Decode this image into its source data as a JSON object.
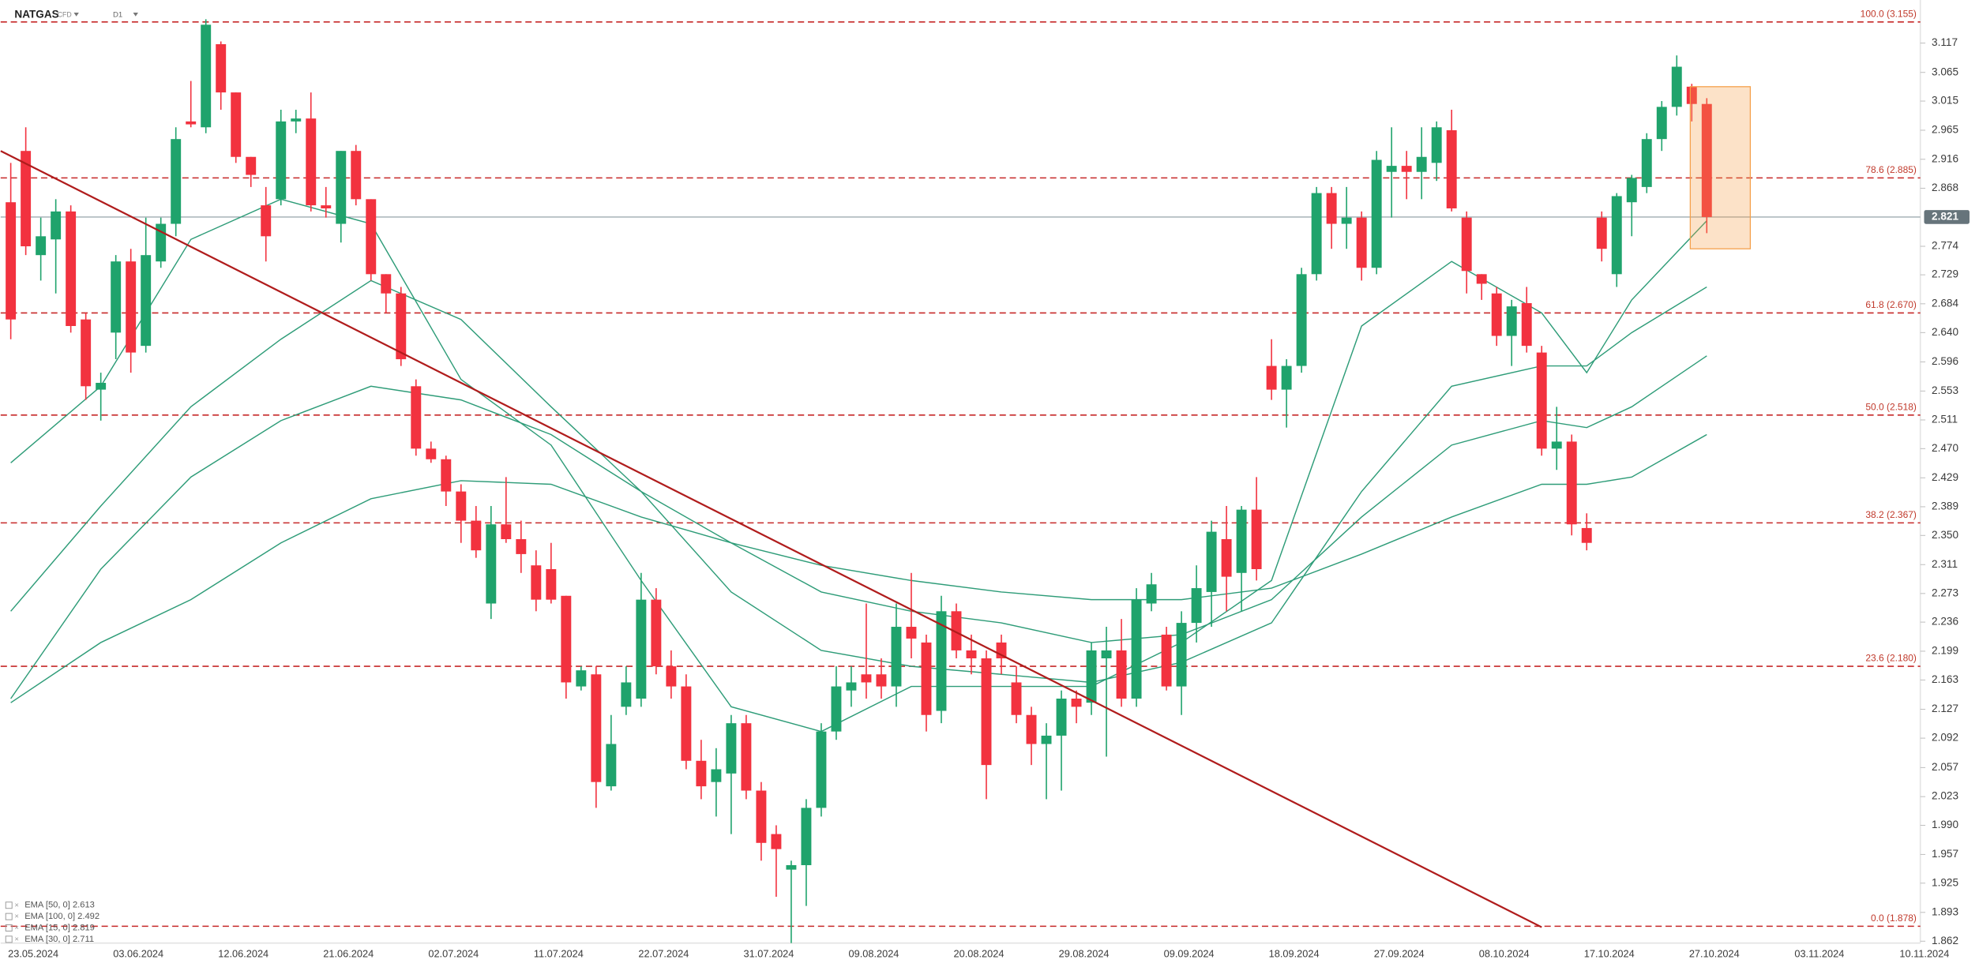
{
  "chart_data": {
    "type": "candlestick",
    "symbol": "NATGAS",
    "instrument_type": "CFD",
    "timeframe": "D1",
    "log_scale": true,
    "ylim": [
      1.86,
      3.195
    ],
    "yticks": [
      3.117,
      3.065,
      3.015,
      2.965,
      2.916,
      2.868,
      2.774,
      2.729,
      2.684,
      {
        "value": 2.64,
        "label": "2.640"
      },
      2.596,
      2.553,
      2.511,
      {
        "value": 2.47,
        "label": "2.470"
      },
      2.429,
      2.389,
      {
        "value": 2.35,
        "label": "2.350"
      },
      2.311,
      2.273,
      2.236,
      2.199,
      2.163,
      2.127,
      2.092,
      2.057,
      2.023,
      {
        "value": 1.99,
        "label": "1.990"
      },
      1.957,
      1.925,
      1.893,
      1.862
    ],
    "categories": [
      null,
      "23.05.2024",
      null,
      null,
      null,
      null,
      null,
      null,
      "03.06.2024",
      null,
      null,
      null,
      null,
      null,
      null,
      "12.06.2024",
      null,
      null,
      null,
      null,
      null,
      null,
      "21.06.2024",
      null,
      null,
      null,
      null,
      null,
      null,
      "02.07.2024",
      null,
      null,
      null,
      null,
      null,
      null,
      "11.07.2024",
      null,
      null,
      null,
      null,
      null,
      null,
      "22.07.2024",
      null,
      null,
      null,
      null,
      null,
      null,
      "31.07.2024",
      null,
      null,
      null,
      null,
      null,
      null,
      "09.08.2024",
      null,
      null,
      null,
      null,
      null,
      null,
      "20.08.2024",
      null,
      null,
      null,
      null,
      null,
      null,
      "29.08.2024",
      null,
      null,
      null,
      null,
      null,
      null,
      "09.09.2024",
      null,
      null,
      null,
      null,
      null,
      null,
      "18.09.2024",
      null,
      null,
      null,
      null,
      null,
      null,
      "27.09.2024",
      null,
      null,
      null,
      null,
      null,
      null,
      "08.10.2024",
      null,
      null,
      null,
      null,
      null,
      null,
      "17.10.2024",
      null,
      null,
      null,
      null,
      null,
      null,
      "27.10.2024",
      null,
      null,
      null,
      null,
      null,
      null,
      "03.11.2024",
      null,
      null,
      null,
      null,
      null,
      null,
      "10.11.2024"
    ],
    "candles": {
      "up_color": "#1fa36c",
      "down_color": "#f2323f",
      "open": [
        2.845,
        2.93,
        2.76,
        2.785,
        2.83,
        2.66,
        2.555,
        2.64,
        2.75,
        2.62,
        2.75,
        2.81,
        2.98,
        2.97,
        3.115,
        3.03,
        2.92,
        2.84,
        2.85,
        2.98,
        2.985,
        2.84,
        2.81,
        2.93,
        2.85,
        2.73,
        2.7,
        2.56,
        2.47,
        2.455,
        2.41,
        2.37,
        2.26,
        2.365,
        2.345,
        2.31,
        2.305,
        2.27,
        2.155,
        2.17,
        2.035,
        2.13,
        2.14,
        2.265,
        2.18,
        2.155,
        2.065,
        2.04,
        2.05,
        2.11,
        2.03,
        1.98,
        1.94,
        1.945,
        2.01,
        2.1,
        2.15,
        2.17,
        2.17,
        2.155,
        2.23,
        2.21,
        2.125,
        2.25,
        2.2,
        2.19,
        2.21,
        2.16,
        2.12,
        2.085,
        2.095,
        2.14,
        2.135,
        2.19,
        2.2,
        2.14,
        2.26,
        2.22,
        2.155,
        2.235,
        2.275,
        2.345,
        2.3,
        2.385,
        2.59,
        2.555,
        2.59,
        2.73,
        2.86,
        2.81,
        2.82,
        2.74,
        2.895,
        2.905,
        2.895,
        2.91,
        2.965,
        2.82,
        2.73,
        2.7,
        2.635,
        2.685,
        2.61,
        2.47,
        2.48,
        2.36,
        2.82,
        2.73,
        2.845,
        2.87,
        2.95,
        3.005,
        3.04,
        3.01,
        null,
        null,
        null,
        null,
        null,
        null,
        null,
        null,
        null,
        null,
        null,
        null,
        null,
        null
      ],
      "high": [
        2.91,
        2.97,
        2.82,
        2.85,
        2.84,
        2.67,
        2.58,
        2.76,
        2.77,
        2.82,
        2.82,
        2.97,
        3.05,
        3.16,
        3.12,
        3.03,
        2.92,
        2.87,
        3.0,
        3.0,
        3.03,
        2.87,
        2.93,
        2.94,
        2.85,
        2.73,
        2.71,
        2.57,
        2.48,
        2.46,
        2.42,
        2.39,
        2.39,
        2.43,
        2.37,
        2.33,
        2.34,
        2.27,
        2.18,
        2.18,
        2.12,
        2.18,
        2.3,
        2.28,
        2.2,
        2.17,
        2.09,
        2.08,
        2.12,
        2.12,
        2.04,
        1.99,
        1.95,
        2.02,
        2.11,
        2.18,
        2.18,
        2.26,
        2.19,
        2.26,
        2.3,
        2.22,
        2.27,
        2.26,
        2.22,
        2.2,
        2.22,
        2.18,
        2.13,
        2.11,
        2.15,
        2.15,
        2.21,
        2.23,
        2.24,
        2.28,
        2.3,
        2.23,
        2.25,
        2.31,
        2.37,
        2.39,
        2.39,
        2.43,
        2.63,
        2.6,
        2.74,
        2.87,
        2.87,
        2.87,
        2.83,
        2.93,
        2.97,
        2.93,
        2.97,
        2.98,
        3.0,
        2.83,
        2.73,
        2.71,
        2.69,
        2.71,
        2.62,
        2.53,
        2.49,
        2.38,
        2.83,
        2.86,
        2.89,
        2.96,
        3.015,
        3.095,
        3.045,
        3.02,
        null,
        null,
        null,
        null,
        null,
        null,
        null,
        null,
        null,
        null,
        null,
        null,
        null,
        null
      ],
      "low": [
        2.63,
        2.76,
        2.72,
        2.7,
        2.64,
        2.54,
        2.51,
        2.6,
        2.58,
        2.61,
        2.74,
        2.79,
        2.97,
        2.96,
        3.0,
        2.91,
        2.87,
        2.75,
        2.84,
        2.96,
        2.83,
        2.82,
        2.78,
        2.84,
        2.72,
        2.67,
        2.59,
        2.46,
        2.45,
        2.39,
        2.34,
        2.32,
        2.24,
        2.34,
        2.3,
        2.25,
        2.26,
        2.14,
        2.15,
        2.01,
        2.03,
        2.12,
        2.13,
        2.17,
        2.14,
        2.055,
        2.02,
        2.0,
        1.98,
        2.02,
        1.95,
        1.91,
        1.86,
        1.9,
        2.0,
        2.09,
        2.13,
        2.14,
        2.14,
        2.13,
        2.19,
        2.1,
        2.11,
        2.19,
        2.17,
        2.02,
        2.17,
        2.11,
        2.06,
        2.02,
        2.03,
        2.11,
        2.12,
        2.07,
        2.13,
        2.13,
        2.25,
        2.15,
        2.12,
        2.21,
        2.23,
        2.25,
        2.25,
        2.29,
        2.54,
        2.5,
        2.58,
        2.72,
        2.77,
        2.77,
        2.72,
        2.73,
        2.82,
        2.85,
        2.85,
        2.88,
        2.83,
        2.7,
        2.69,
        2.62,
        2.59,
        2.61,
        2.46,
        2.44,
        2.35,
        2.33,
        2.75,
        2.71,
        2.79,
        2.86,
        2.93,
        2.99,
        2.98,
        2.795,
        null,
        null,
        null,
        null,
        null,
        null,
        null,
        null,
        null,
        null,
        null,
        null,
        null,
        null
      ],
      "close": [
        2.66,
        2.774,
        2.79,
        2.83,
        2.65,
        2.56,
        2.565,
        2.75,
        2.61,
        2.76,
        2.81,
        2.95,
        2.975,
        3.15,
        3.03,
        2.92,
        2.89,
        2.79,
        2.98,
        2.985,
        2.84,
        2.835,
        2.93,
        2.85,
        2.73,
        2.7,
        2.6,
        2.47,
        2.455,
        2.41,
        2.37,
        2.33,
        2.365,
        2.345,
        2.325,
        2.265,
        2.265,
        2.16,
        2.175,
        2.04,
        2.085,
        2.16,
        2.265,
        2.18,
        2.155,
        2.065,
        2.035,
        2.055,
        2.11,
        2.03,
        1.97,
        1.963,
        1.945,
        2.01,
        2.1,
        2.155,
        2.16,
        2.16,
        2.155,
        2.23,
        2.215,
        2.12,
        2.25,
        2.2,
        2.19,
        2.06,
        2.19,
        2.12,
        2.085,
        2.095,
        2.14,
        2.13,
        2.2,
        2.2,
        2.14,
        2.265,
        2.285,
        2.155,
        2.235,
        2.28,
        2.355,
        2.295,
        2.385,
        2.305,
        2.555,
        2.59,
        2.73,
        2.86,
        2.81,
        2.82,
        2.74,
        2.915,
        2.905,
        2.895,
        2.92,
        2.97,
        2.835,
        2.735,
        2.715,
        2.635,
        2.68,
        2.62,
        2.47,
        2.48,
        2.365,
        2.34,
        2.77,
        2.855,
        2.885,
        2.95,
        3.005,
        3.075,
        3.01,
        2.821,
        null,
        null,
        null,
        null,
        null,
        null,
        null,
        null,
        null,
        null,
        null,
        null,
        null,
        null
      ]
    },
    "current_price": 2.821,
    "levels": [
      {
        "label": "100.0 (3.155)",
        "value": 3.155
      },
      {
        "label": "78.6 (2.885)",
        "value": 2.885
      },
      {
        "label": "61.8 (2.670)",
        "value": 2.67
      },
      {
        "label": "50.0 (2.518)",
        "value": 2.518
      },
      {
        "label": "38.2 (2.367)",
        "value": 2.367
      },
      {
        "label": "23.6 (2.180)",
        "value": 2.18
      },
      {
        "label": "0.0 (1.878)",
        "value": 1.878
      }
    ],
    "level_color": "#c62828",
    "ema": [
      {
        "name": "EMA [50, 0] 2.613",
        "color": "#2e9c78",
        "x": [
          0,
          6,
          12,
          18,
          24,
          30,
          36,
          42,
          48,
          54,
          60,
          66,
          72,
          78,
          84,
          90,
          96,
          102,
          105,
          108,
          113
        ],
        "values": [
          2.14,
          2.305,
          2.43,
          2.51,
          2.56,
          2.54,
          2.49,
          2.41,
          2.34,
          2.275,
          2.25,
          2.235,
          2.21,
          2.22,
          2.265,
          2.375,
          2.475,
          2.51,
          2.5,
          2.53,
          2.605
        ]
      },
      {
        "name": "EMA [100, 0] 2.492",
        "color": "#2e9c78",
        "x": [
          0,
          6,
          12,
          18,
          24,
          30,
          36,
          42,
          48,
          54,
          60,
          66,
          72,
          78,
          84,
          90,
          96,
          102,
          105,
          108,
          113
        ],
        "values": [
          2.135,
          2.21,
          2.265,
          2.34,
          2.4,
          2.425,
          2.42,
          2.375,
          2.34,
          2.31,
          2.29,
          2.275,
          2.265,
          2.265,
          2.28,
          2.325,
          2.375,
          2.42,
          2.42,
          2.43,
          2.49
        ]
      },
      {
        "name": "EMA [15, 0] 2.819",
        "color": "#2e9c78",
        "x": [
          0,
          6,
          12,
          18,
          24,
          30,
          36,
          42,
          48,
          54,
          60,
          66,
          72,
          78,
          84,
          90,
          96,
          102,
          105,
          108,
          113
        ],
        "values": [
          2.45,
          2.56,
          2.785,
          2.85,
          2.81,
          2.57,
          2.475,
          2.29,
          2.13,
          2.1,
          2.155,
          2.155,
          2.155,
          2.21,
          2.29,
          2.65,
          2.75,
          2.67,
          2.58,
          2.69,
          2.815
        ]
      },
      {
        "name": "EMA [30, 0] 2.711",
        "color": "#2e9c78",
        "x": [
          0,
          6,
          12,
          18,
          24,
          30,
          36,
          42,
          48,
          54,
          60,
          66,
          72,
          78,
          84,
          90,
          96,
          102,
          105,
          108,
          113
        ],
        "values": [
          2.25,
          2.39,
          2.53,
          2.63,
          2.72,
          2.66,
          2.53,
          2.41,
          2.275,
          2.2,
          2.18,
          2.17,
          2.16,
          2.185,
          2.235,
          2.41,
          2.56,
          2.59,
          2.59,
          2.64,
          2.71
        ]
      }
    ],
    "trendline": {
      "color": "#b01c1c",
      "x": [
        -0.67,
        102
      ],
      "values": [
        2.93,
        1.877
      ]
    },
    "highlight_box": {
      "color": "#f5a04a",
      "x": [
        111.9,
        115.9
      ],
      "values": [
        3.04,
        2.77
      ]
    }
  }
}
